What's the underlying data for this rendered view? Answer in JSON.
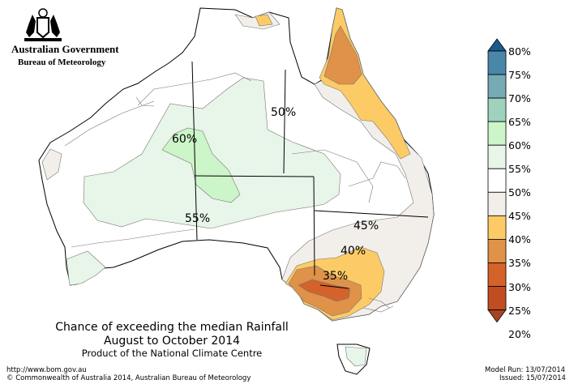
{
  "header": {
    "government": "Australian Government",
    "agency": "Bureau of Meteorology"
  },
  "map": {
    "contour_labels": [
      "60%",
      "50%",
      "55%",
      "45%",
      "40%",
      "35%"
    ]
  },
  "title": {
    "line1": "Chance of exceeding the median Rainfall",
    "line2": "August to October 2014",
    "line3": "Product of the National Climate Centre"
  },
  "footer": {
    "url": "http://www.bom.gov.au",
    "copyright": "© Commonwealth of Australia 2014, Australian Bureau of Meteorology",
    "model_run": "Model Run: 13/07/2014",
    "issued": "Issued: 15/07/2014"
  },
  "legend": {
    "labels": [
      "80%",
      "75%",
      "70%",
      "65%",
      "60%",
      "55%",
      "50%",
      "45%",
      "40%",
      "35%",
      "30%",
      "25%",
      "20%"
    ],
    "colors": [
      "#1b5a8e",
      "#4a86a8",
      "#76aab5",
      "#9fd2bd",
      "#ccf5c9",
      "#e8f5e9",
      "#ffffff",
      "#f2eee9",
      "#fdcb66",
      "#e09248",
      "#d3622b",
      "#c04d22",
      "#a64420"
    ]
  }
}
